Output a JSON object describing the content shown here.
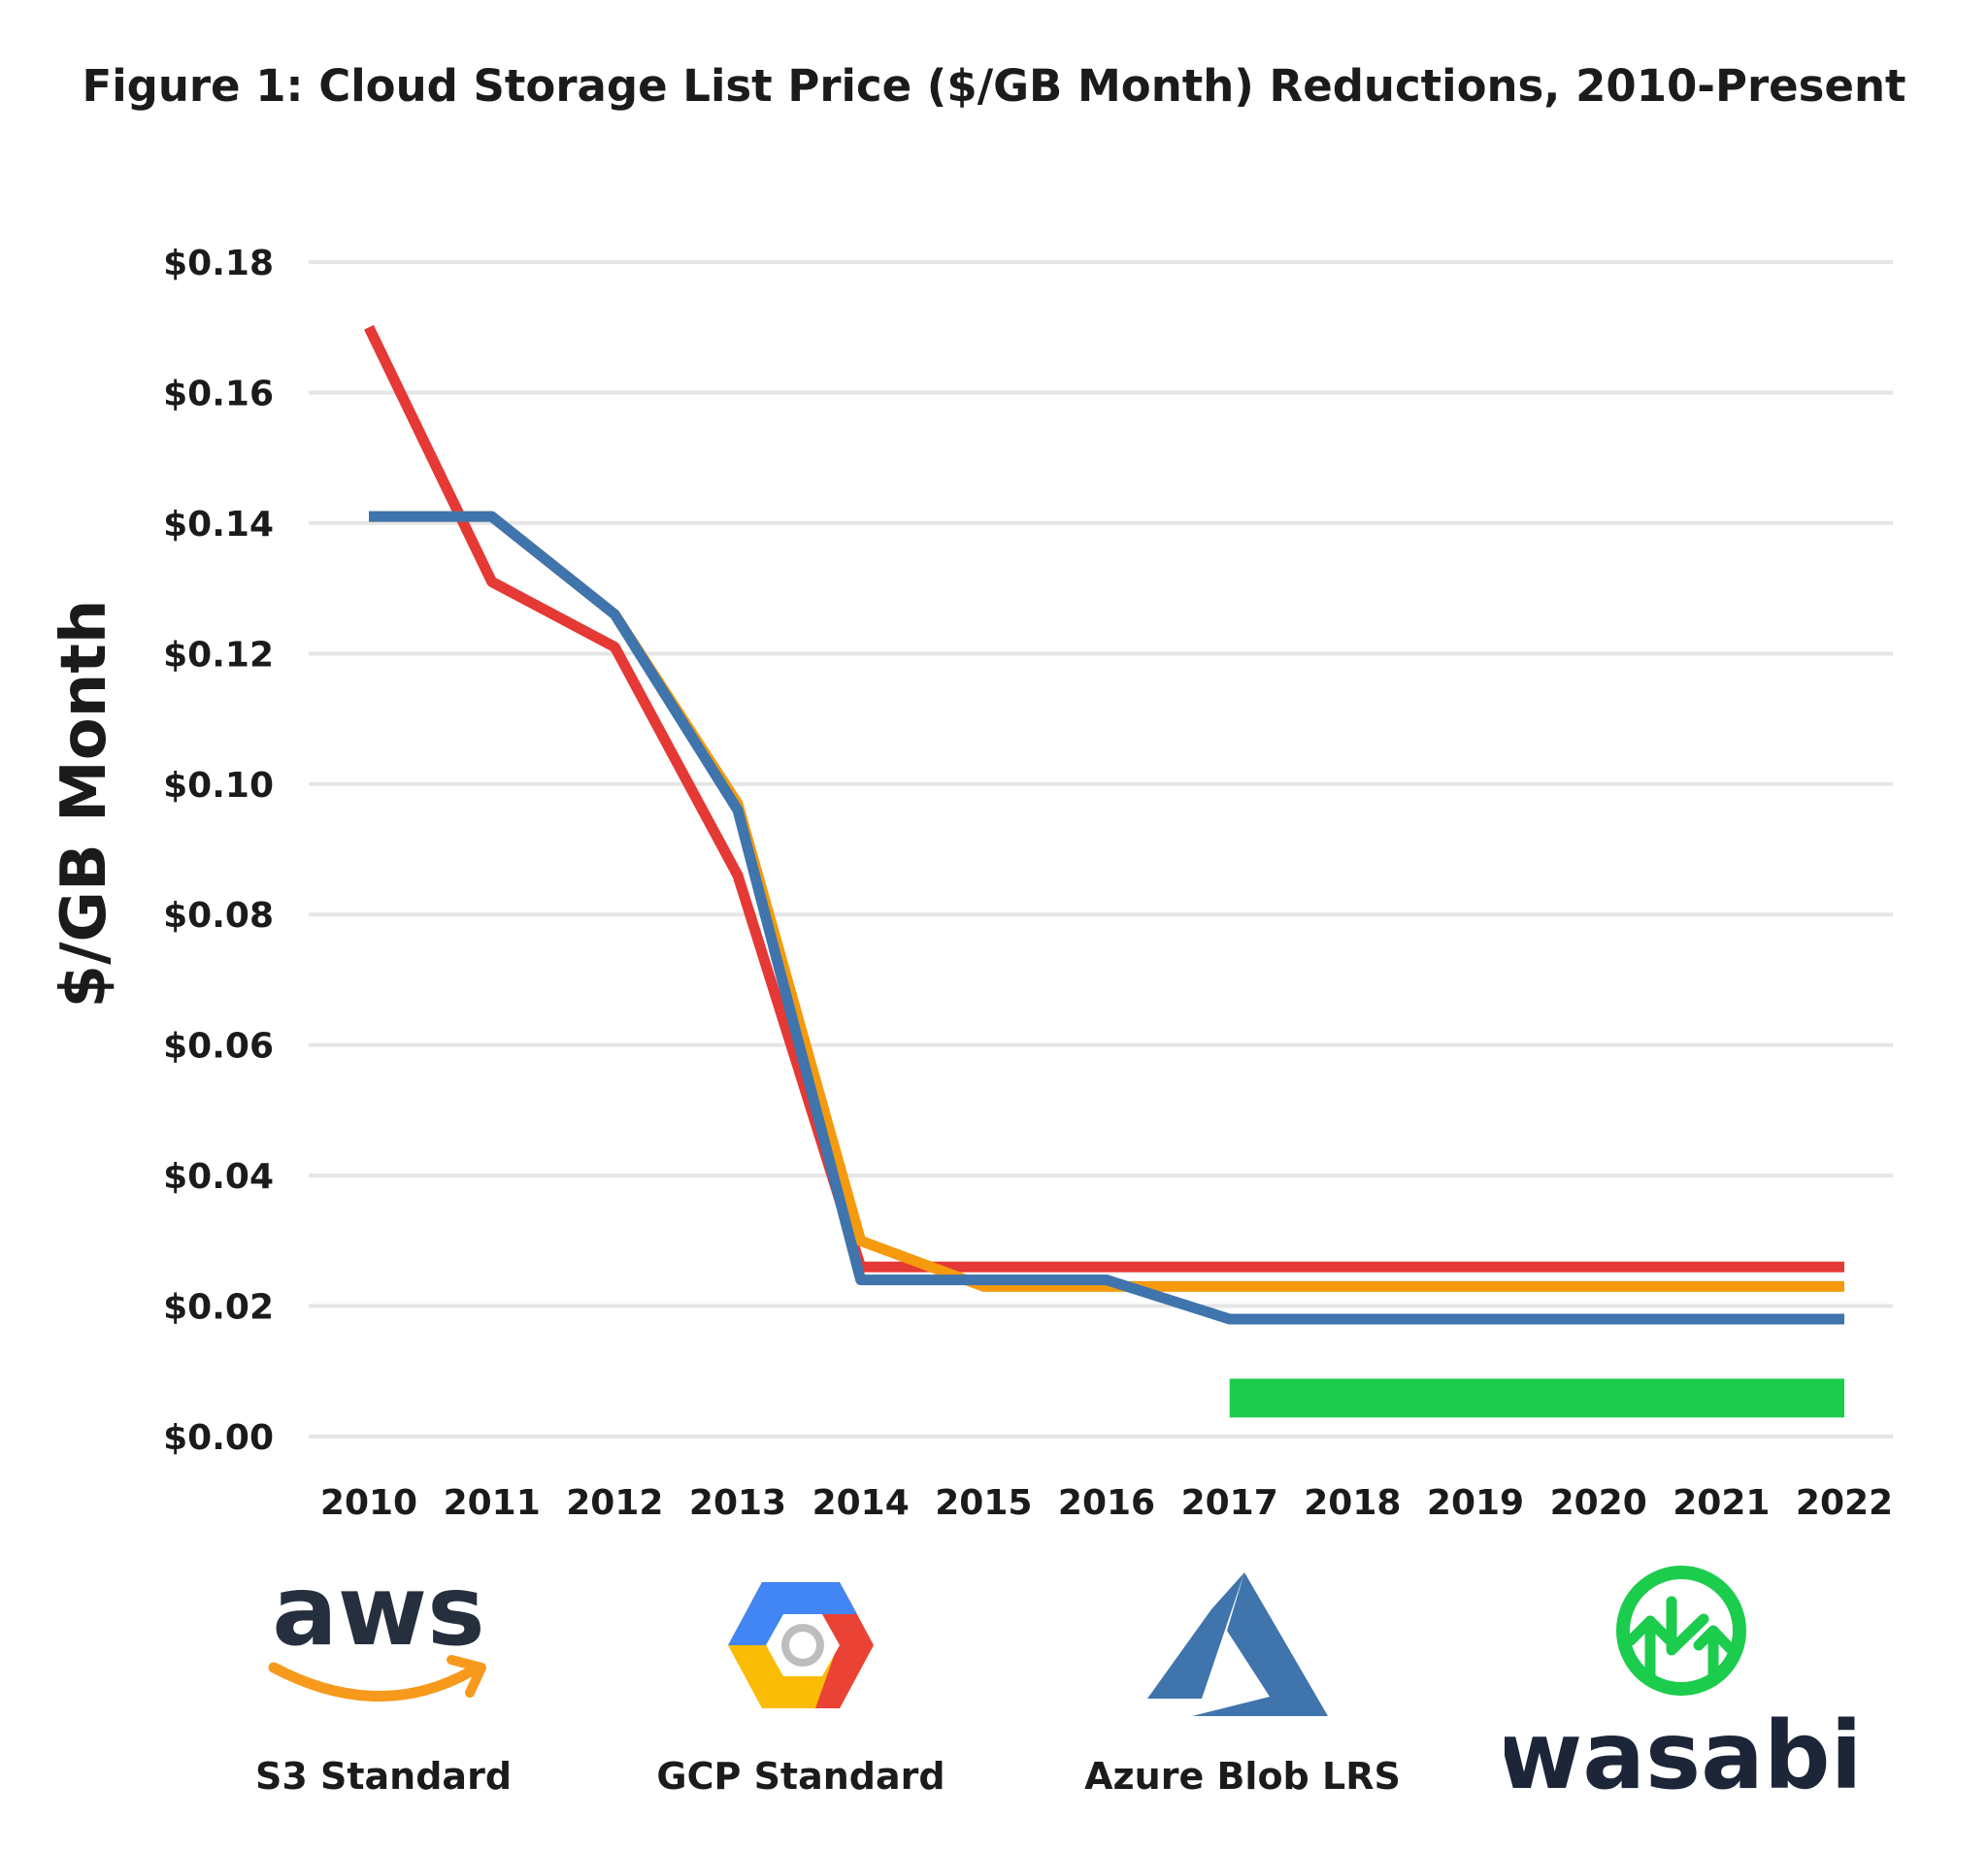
{
  "title": "Figure 1: Cloud Storage List Price ($/GB Month) Reductions, 2010-Present",
  "colors": {
    "aws": "#e53935",
    "gcp": "#f59a0c",
    "azure": "#3f74ad",
    "wasabi": "#1ccc4c",
    "grid": "#e5e5e5",
    "text": "#1b1b1b"
  },
  "legend": [
    {
      "label": "S3 Standard",
      "logo": "aws-logo",
      "logo_text": "aws",
      "color": "#e53935"
    },
    {
      "label": "GCP Standard",
      "logo": "google-cloud-logo",
      "color": "#f59a0c"
    },
    {
      "label": "Azure Blob LRS",
      "logo": "azure-logo",
      "color": "#3f74ad"
    },
    {
      "label": "",
      "logo": "wasabi-logo",
      "logo_text": "wasabi",
      "color": "#1ccc4c"
    }
  ],
  "chart_data": {
    "type": "line",
    "title": "Figure 1: Cloud Storage List Price ($/GB Month) Reductions, 2010-Present",
    "xlabel": "",
    "ylabel": "$/GB Month",
    "x": [
      2010,
      2011,
      2012,
      2013,
      2014,
      2015,
      2016,
      2017,
      2018,
      2019,
      2020,
      2021,
      2022
    ],
    "ylim": [
      0,
      0.18
    ],
    "yticks": [
      0,
      0.02,
      0.04,
      0.06,
      0.08,
      0.1,
      0.12,
      0.14,
      0.16,
      0.18
    ],
    "ytick_labels": [
      "$0.00",
      "$0.02",
      "$0.04",
      "$0.06",
      "$0.08",
      "$0.10",
      "$0.12",
      "$0.14",
      "$0.16",
      "$0.18"
    ],
    "grid": true,
    "legend": "bottom",
    "series": [
      {
        "name": "S3 Standard",
        "color": "#e53935",
        "values": [
          0.17,
          0.131,
          0.121,
          0.086,
          0.026,
          0.026,
          0.026,
          0.026,
          0.026,
          0.026,
          0.026,
          0.026,
          0.026
        ]
      },
      {
        "name": "GCP Standard",
        "color": "#f59a0c",
        "values": [
          0.141,
          0.141,
          0.126,
          0.097,
          0.03,
          0.023,
          0.023,
          0.023,
          0.023,
          0.023,
          0.023,
          0.023,
          0.023
        ]
      },
      {
        "name": "Azure Blob LRS",
        "color": "#3f74ad",
        "values": [
          0.141,
          0.141,
          0.126,
          0.096,
          0.024,
          0.024,
          0.024,
          0.018,
          0.018,
          0.018,
          0.018,
          0.018,
          0.018
        ]
      },
      {
        "name": "wasabi",
        "color": "#1ccc4c",
        "style": "thick",
        "x_range": [
          2017,
          2022
        ],
        "values": [
          null,
          null,
          null,
          null,
          null,
          null,
          null,
          0.0059,
          0.0059,
          0.0059,
          0.0059,
          0.0059,
          0.0059
        ]
      }
    ]
  }
}
